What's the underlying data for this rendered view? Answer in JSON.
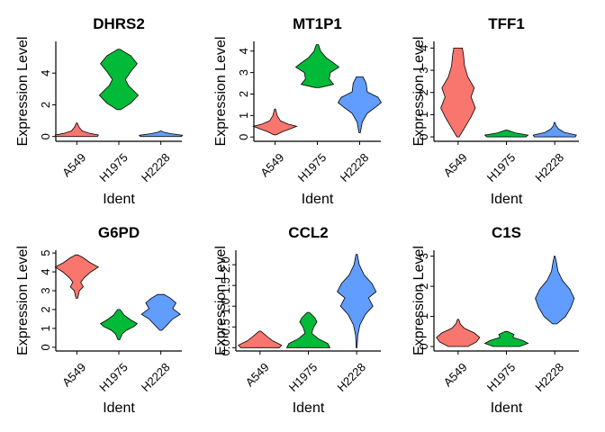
{
  "chart_data": [
    {
      "type": "violin",
      "title": "DHRS2",
      "xlabel": "Ident",
      "ylabel": "Expression Level",
      "categories": [
        "A549",
        "H1975",
        "H2228"
      ],
      "ylim": [
        -0.3,
        6.0
      ],
      "yticks": [
        0,
        2,
        4
      ],
      "ytick_labels": [
        "0",
        "2",
        "4"
      ],
      "colors": [
        "#F8766D",
        "#00BA38",
        "#619CFF"
      ],
      "series": [
        {
          "name": "A549",
          "min": 0,
          "max": 0.85,
          "profile": [
            [
              0,
              0.95
            ],
            [
              0.1,
              1
            ],
            [
              0.2,
              0.6
            ],
            [
              0.35,
              0.25
            ],
            [
              0.6,
              0.1
            ],
            [
              0.85,
              0.02
            ]
          ]
        },
        {
          "name": "H1975",
          "min": 1.7,
          "max": 5.5,
          "profile": [
            [
              1.7,
              0.08
            ],
            [
              2.1,
              0.55
            ],
            [
              2.6,
              0.9
            ],
            [
              3.2,
              0.45
            ],
            [
              3.6,
              0.3
            ],
            [
              4.1,
              0.55
            ],
            [
              4.6,
              0.85
            ],
            [
              5.1,
              0.55
            ],
            [
              5.5,
              0.05
            ]
          ]
        },
        {
          "name": "H2228",
          "min": 0,
          "max": 0.35,
          "profile": [
            [
              0,
              0.95
            ],
            [
              0.08,
              1
            ],
            [
              0.18,
              0.45
            ],
            [
              0.28,
              0.12
            ],
            [
              0.35,
              0.02
            ]
          ]
        }
      ]
    },
    {
      "type": "violin",
      "title": "MT1P1",
      "xlabel": "Ident",
      "ylabel": "Expression Level",
      "categories": [
        "A549",
        "H1975",
        "H2228"
      ],
      "ylim": [
        -0.2,
        4.45
      ],
      "yticks": [
        0,
        1,
        2,
        3,
        4
      ],
      "ytick_labels": [
        "0",
        "1",
        "2",
        "3",
        "4"
      ],
      "colors": [
        "#F8766D",
        "#00BA38",
        "#619CFF"
      ],
      "series": [
        {
          "name": "A549",
          "min": 0.1,
          "max": 1.3,
          "profile": [
            [
              0.1,
              0.05
            ],
            [
              0.25,
              0.35
            ],
            [
              0.4,
              0.75
            ],
            [
              0.5,
              1
            ],
            [
              0.6,
              0.6
            ],
            [
              0.75,
              0.25
            ],
            [
              1.0,
              0.1
            ],
            [
              1.3,
              0.02
            ]
          ]
        },
        {
          "name": "H1975",
          "min": 2.3,
          "max": 4.3,
          "profile": [
            [
              2.3,
              0.1
            ],
            [
              2.45,
              0.75
            ],
            [
              2.7,
              0.55
            ],
            [
              3.0,
              0.6
            ],
            [
              3.25,
              1
            ],
            [
              3.45,
              0.75
            ],
            [
              3.7,
              0.4
            ],
            [
              4.0,
              0.15
            ],
            [
              4.3,
              0.05
            ]
          ]
        },
        {
          "name": "H2228",
          "min": 0.2,
          "max": 2.8,
          "profile": [
            [
              0.2,
              0.03
            ],
            [
              0.7,
              0.12
            ],
            [
              1.1,
              0.35
            ],
            [
              1.4,
              0.75
            ],
            [
              1.6,
              1
            ],
            [
              1.85,
              0.85
            ],
            [
              2.1,
              0.35
            ],
            [
              2.5,
              0.3
            ],
            [
              2.8,
              0.15
            ]
          ]
        }
      ]
    },
    {
      "type": "violin",
      "title": "TFF1",
      "xlabel": "Ident",
      "ylabel": "Expression Level",
      "categories": [
        "A549",
        "H1975",
        "H2228"
      ],
      "ylim": [
        -0.2,
        4.3
      ],
      "yticks": [
        0,
        1,
        2,
        3,
        4
      ],
      "ytick_labels": [
        "0",
        "1",
        "2",
        "3",
        "4"
      ],
      "colors": [
        "#F8766D",
        "#00BA38",
        "#619CFF"
      ],
      "series": [
        {
          "name": "A549",
          "min": 0,
          "max": 4.0,
          "profile": [
            [
              0,
              0.05
            ],
            [
              0.4,
              0.3
            ],
            [
              0.9,
              0.6
            ],
            [
              1.3,
              0.8
            ],
            [
              1.8,
              0.6
            ],
            [
              2.2,
              0.75
            ],
            [
              2.7,
              0.45
            ],
            [
              3.2,
              0.3
            ],
            [
              3.7,
              0.25
            ],
            [
              4.0,
              0.2
            ]
          ]
        },
        {
          "name": "H1975",
          "min": 0,
          "max": 0.3,
          "profile": [
            [
              0,
              0.9
            ],
            [
              0.08,
              1
            ],
            [
              0.18,
              0.4
            ],
            [
              0.3,
              0.05
            ]
          ]
        },
        {
          "name": "H2228",
          "min": 0,
          "max": 0.65,
          "profile": [
            [
              0,
              0.95
            ],
            [
              0.08,
              1
            ],
            [
              0.2,
              0.45
            ],
            [
              0.35,
              0.18
            ],
            [
              0.5,
              0.06
            ],
            [
              0.65,
              0.02
            ]
          ]
        }
      ]
    },
    {
      "type": "violin",
      "title": "G6PD",
      "xlabel": "Ident",
      "ylabel": "Expression Level",
      "categories": [
        "A549",
        "H1975",
        "H2228"
      ],
      "ylim": [
        -0.2,
        5.15
      ],
      "yticks": [
        0,
        1,
        2,
        3,
        4,
        5
      ],
      "ytick_labels": [
        "0",
        "1",
        "2",
        "3",
        "4",
        "5"
      ],
      "colors": [
        "#F8766D",
        "#00BA38",
        "#619CFF"
      ],
      "series": [
        {
          "name": "A549",
          "min": 2.6,
          "max": 4.9,
          "profile": [
            [
              2.6,
              0.04
            ],
            [
              3.0,
              0.12
            ],
            [
              3.2,
              0.3
            ],
            [
              3.45,
              0.18
            ],
            [
              3.7,
              0.35
            ],
            [
              4.0,
              0.65
            ],
            [
              4.25,
              1
            ],
            [
              4.5,
              0.6
            ],
            [
              4.75,
              0.3
            ],
            [
              4.9,
              0.05
            ]
          ]
        },
        {
          "name": "H1975",
          "min": 0.4,
          "max": 2.0,
          "profile": [
            [
              0.4,
              0.04
            ],
            [
              0.7,
              0.15
            ],
            [
              0.9,
              0.35
            ],
            [
              1.1,
              0.7
            ],
            [
              1.25,
              0.85
            ],
            [
              1.45,
              0.55
            ],
            [
              1.7,
              0.25
            ],
            [
              1.9,
              0.12
            ],
            [
              2.0,
              0.05
            ]
          ]
        },
        {
          "name": "H2228",
          "min": 0.9,
          "max": 2.8,
          "profile": [
            [
              0.9,
              0.05
            ],
            [
              1.2,
              0.3
            ],
            [
              1.5,
              0.55
            ],
            [
              1.75,
              0.9
            ],
            [
              2.05,
              0.55
            ],
            [
              2.35,
              0.7
            ],
            [
              2.6,
              0.45
            ],
            [
              2.8,
              0.15
            ]
          ]
        }
      ]
    },
    {
      "type": "violin",
      "title": "CCL2",
      "xlabel": "Ident",
      "ylabel": "Expression Level",
      "categories": [
        "A549",
        "H1975",
        "H2228"
      ],
      "ylim": [
        -0.08,
        2.35
      ],
      "yticks": [
        0,
        0.5,
        1.0,
        1.5,
        2.0
      ],
      "ytick_labels": [
        "0.0",
        "0.5",
        "1.0",
        "1.5",
        "2.0"
      ],
      "colors": [
        "#F8766D",
        "#00BA38",
        "#619CFF"
      ],
      "series": [
        {
          "name": "A549",
          "min": 0,
          "max": 0.4,
          "profile": [
            [
              0,
              0.9
            ],
            [
              0.06,
              1
            ],
            [
              0.16,
              0.6
            ],
            [
              0.26,
              0.35
            ],
            [
              0.35,
              0.15
            ],
            [
              0.4,
              0.03
            ]
          ]
        },
        {
          "name": "H1975",
          "min": 0,
          "max": 0.85,
          "profile": [
            [
              0,
              1
            ],
            [
              0.1,
              0.9
            ],
            [
              0.22,
              0.45
            ],
            [
              0.35,
              0.15
            ],
            [
              0.5,
              0.25
            ],
            [
              0.62,
              0.4
            ],
            [
              0.72,
              0.3
            ],
            [
              0.85,
              0.05
            ]
          ]
        },
        {
          "name": "H2228",
          "min": 0,
          "max": 2.25,
          "profile": [
            [
              0,
              0.02
            ],
            [
              0.3,
              0.05
            ],
            [
              0.55,
              0.15
            ],
            [
              0.8,
              0.4
            ],
            [
              1.0,
              0.75
            ],
            [
              1.2,
              0.55
            ],
            [
              1.35,
              0.9
            ],
            [
              1.55,
              0.7
            ],
            [
              1.75,
              0.35
            ],
            [
              2.0,
              0.12
            ],
            [
              2.25,
              0.03
            ]
          ]
        }
      ]
    },
    {
      "type": "violin",
      "title": "C1S",
      "xlabel": "Ident",
      "ylabel": "Expression Level",
      "categories": [
        "A549",
        "H1975",
        "H2228"
      ],
      "ylim": [
        -0.15,
        3.2
      ],
      "yticks": [
        0,
        1,
        2,
        3
      ],
      "ytick_labels": [
        "0",
        "1",
        "2",
        "3"
      ],
      "colors": [
        "#F8766D",
        "#00BA38",
        "#619CFF"
      ],
      "series": [
        {
          "name": "A549",
          "min": 0,
          "max": 0.9,
          "profile": [
            [
              0,
              0.45
            ],
            [
              0.15,
              0.85
            ],
            [
              0.3,
              1
            ],
            [
              0.45,
              0.75
            ],
            [
              0.6,
              0.3
            ],
            [
              0.75,
              0.1
            ],
            [
              0.9,
              0.03
            ]
          ]
        },
        {
          "name": "H1975",
          "min": 0,
          "max": 0.5,
          "profile": [
            [
              0,
              0.6
            ],
            [
              0.1,
              1
            ],
            [
              0.2,
              0.75
            ],
            [
              0.3,
              0.3
            ],
            [
              0.4,
              0.35
            ],
            [
              0.5,
              0.05
            ]
          ]
        },
        {
          "name": "H2228",
          "min": 0.75,
          "max": 3.0,
          "profile": [
            [
              0.75,
              0.1
            ],
            [
              1.0,
              0.5
            ],
            [
              1.3,
              0.75
            ],
            [
              1.6,
              0.9
            ],
            [
              1.9,
              0.7
            ],
            [
              2.2,
              0.35
            ],
            [
              2.5,
              0.15
            ],
            [
              2.8,
              0.08
            ],
            [
              3.0,
              0.02
            ]
          ]
        }
      ]
    }
  ]
}
